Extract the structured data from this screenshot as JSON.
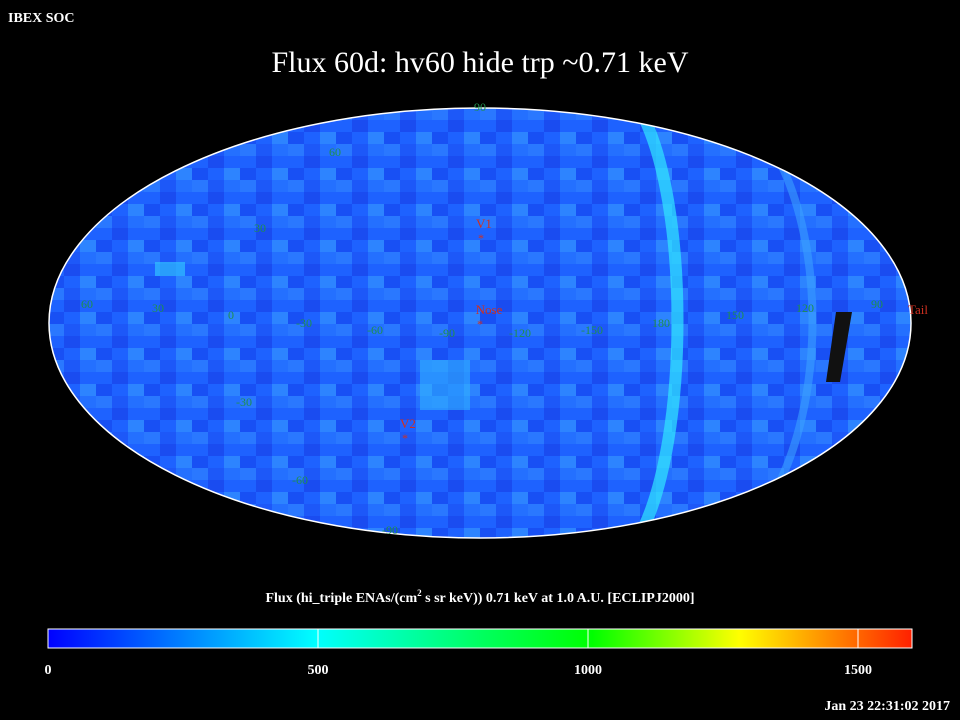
{
  "header": {
    "source": "IBEX SOC",
    "title": "Flux   60d: hv60 hide trp ~0.71 keV",
    "timestamp": "Jan 23 22:31:02 2017"
  },
  "map": {
    "markers": [
      {
        "label": "V1"
      },
      {
        "label": "Nose"
      },
      {
        "label": "V2"
      },
      {
        "label": "Tail"
      }
    ],
    "latitude_labels": [
      "90",
      "60",
      "30",
      "-30",
      "-60",
      "-90"
    ],
    "longitude_labels": [
      "60",
      "30",
      "0",
      "-30",
      "-60",
      "-90",
      "-120",
      "-150",
      "180",
      "150",
      "120",
      "90"
    ]
  },
  "colorbar": {
    "label": {
      "before": "Flux (hi_triple ENAs/(cm",
      "superscript": "2",
      "after": " s sr keV))  0.71 keV at 1.0 A.U. [ECLIPJ2000]"
    },
    "range": [
      0,
      1600
    ],
    "ticks": [
      0,
      500,
      1000,
      1500
    ]
  }
}
